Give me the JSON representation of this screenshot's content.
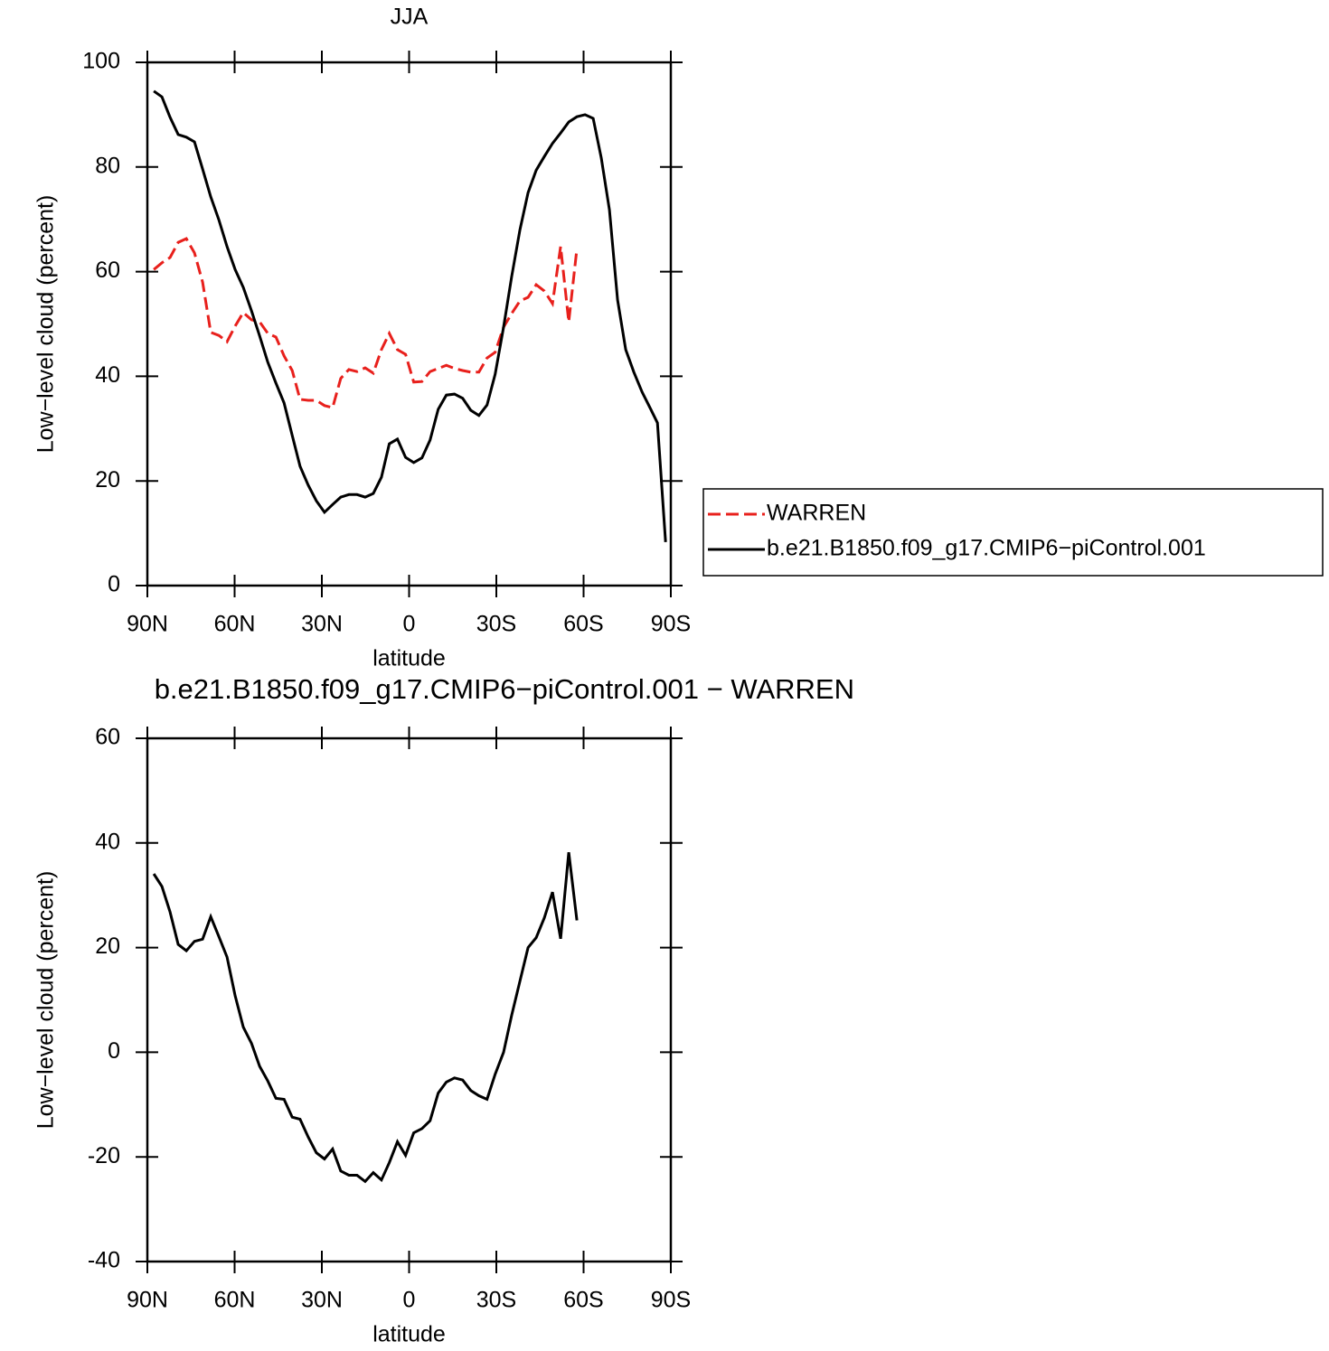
{
  "chart_data": [
    {
      "type": "line",
      "title": "JJA",
      "xlabel": "latitude",
      "ylabel": "Low−level cloud (percent)",
      "x": [
        87.8,
        85.0,
        82.2,
        79.4,
        76.6,
        73.8,
        71.0,
        68.2,
        65.4,
        62.6,
        59.8,
        57.0,
        54.2,
        51.4,
        48.6,
        45.8,
        43.0,
        40.2,
        37.5,
        34.7,
        31.9,
        29.1,
        26.3,
        23.5,
        20.7,
        17.9,
        15.1,
        12.3,
        9.5,
        6.8,
        4.0,
        1.2,
        -1.6,
        -4.4,
        -7.2,
        -10.0,
        -12.8,
        -15.6,
        -18.4,
        -21.2,
        -24.0,
        -26.8,
        -29.6,
        -32.5,
        -35.3,
        -38.1,
        -40.9,
        -43.7,
        -46.5,
        -49.3,
        -52.1,
        -54.9,
        -57.7,
        -60.5,
        -63.3,
        -66.1,
        -68.9,
        -71.7,
        -74.5,
        -77.3,
        -80.1,
        -82.9,
        -85.4,
        -88.2
      ],
      "series": [
        {
          "name": "WARREN",
          "color": "#e8201c",
          "style": "dashed",
          "values": [
            60.4,
            61.7,
            62.7,
            65.6,
            66.3,
            63.6,
            58.0,
            48.4,
            47.8,
            46.6,
            49.6,
            52.2,
            50.8,
            50.4,
            48.2,
            47.5,
            43.9,
            41.1,
            35.6,
            35.4,
            35.4,
            34.4,
            34.0,
            39.6,
            41.3,
            40.9,
            41.6,
            40.6,
            45.1,
            48.2,
            45.1,
            44.2,
            38.9,
            39.0,
            40.9,
            41.5,
            42.1,
            41.5,
            41.1,
            40.8,
            40.8,
            43.5,
            44.6,
            49.4,
            52.0,
            54.4,
            55.1,
            57.5,
            56.3,
            53.9,
            64.8,
            50.4,
            64.4,
            null,
            null,
            null,
            null,
            null,
            null,
            null,
            null,
            null,
            null,
            null
          ]
        },
        {
          "name": "b.e21.B1850.f09_g17.CMIP6−piControl.001",
          "color": "#000000",
          "style": "solid",
          "values": [
            94.5,
            93.4,
            89.5,
            86.2,
            85.7,
            84.8,
            79.6,
            74.3,
            69.9,
            64.8,
            60.4,
            57.0,
            52.5,
            47.7,
            42.7,
            38.7,
            34.9,
            28.7,
            22.8,
            19.2,
            16.2,
            14.0,
            15.5,
            16.9,
            17.4,
            17.4,
            16.9,
            17.6,
            20.7,
            27.1,
            28.0,
            24.5,
            23.5,
            24.4,
            27.8,
            33.7,
            36.4,
            36.6,
            35.8,
            33.5,
            32.5,
            34.5,
            40.4,
            49.4,
            59.1,
            68.0,
            75.1,
            79.4,
            82.0,
            84.5,
            86.5,
            88.6,
            89.6,
            90.0,
            89.3,
            81.7,
            71.8,
            54.6,
            45.1,
            40.8,
            37.0,
            33.9,
            31.1,
            8.3
          ]
        }
      ],
      "xlim": [
        90,
        -90
      ],
      "xticks": [
        {
          "value": 90,
          "label": "90N"
        },
        {
          "value": 60,
          "label": "60N"
        },
        {
          "value": 30,
          "label": "30N"
        },
        0,
        {
          "value": -30,
          "label": "30S"
        },
        {
          "value": -60,
          "label": "60S"
        },
        {
          "value": -90,
          "label": "90S"
        }
      ],
      "ylim": [
        0,
        100
      ],
      "yticks": [
        0,
        20,
        40,
        60,
        80,
        100
      ],
      "legend": "right"
    },
    {
      "type": "line",
      "title": "b.e21.B1850.f09_g17.CMIP6−piControl.001  −  WARREN",
      "xlabel": "latitude",
      "ylabel": "Low−level cloud (percent)",
      "x": [
        87.8,
        85.0,
        82.2,
        79.4,
        76.6,
        73.8,
        71.0,
        68.2,
        65.4,
        62.6,
        59.8,
        57.0,
        54.2,
        51.4,
        48.6,
        45.8,
        43.0,
        40.2,
        37.5,
        34.7,
        31.9,
        29.1,
        26.3,
        23.5,
        20.7,
        17.9,
        15.1,
        12.3,
        9.5,
        6.8,
        4.0,
        1.2,
        -1.6,
        -4.4,
        -7.2,
        -10.0,
        -12.8,
        -15.6,
        -18.4,
        -21.2,
        -24.0,
        -26.8,
        -29.6,
        -32.5,
        -35.3,
        -38.1,
        -40.9,
        -43.7,
        -46.5,
        -49.3,
        -52.1,
        -54.9,
        -57.7
      ],
      "series": [
        {
          "color": "#000000",
          "style": "solid",
          "values": [
            34.1,
            31.7,
            26.8,
            20.6,
            19.4,
            21.2,
            21.6,
            25.9,
            22.1,
            18.2,
            10.8,
            4.8,
            1.7,
            -2.7,
            -5.5,
            -8.8,
            -9.0,
            -12.4,
            -12.8,
            -16.2,
            -19.2,
            -20.4,
            -18.5,
            -22.7,
            -23.5,
            -23.5,
            -24.7,
            -23.0,
            -24.4,
            -21.1,
            -17.1,
            -19.7,
            -15.4,
            -14.6,
            -13.1,
            -7.8,
            -5.7,
            -4.9,
            -5.3,
            -7.3,
            -8.3,
            -9.0,
            -4.2,
            0.0,
            7.1,
            13.6,
            20.0,
            21.9,
            25.7,
            30.6,
            21.7,
            38.2,
            25.2
          ]
        }
      ],
      "xlim": [
        90,
        -90
      ],
      "xticks": [
        {
          "value": 90,
          "label": "90N"
        },
        {
          "value": 60,
          "label": "60N"
        },
        {
          "value": 30,
          "label": "30N"
        },
        0,
        {
          "value": -30,
          "label": "30S"
        },
        {
          "value": -60,
          "label": "60S"
        },
        {
          "value": -90,
          "label": "90S"
        }
      ],
      "ylim": [
        -40,
        60
      ],
      "yticks": [
        -40,
        -20,
        0,
        20,
        40,
        60
      ]
    }
  ]
}
